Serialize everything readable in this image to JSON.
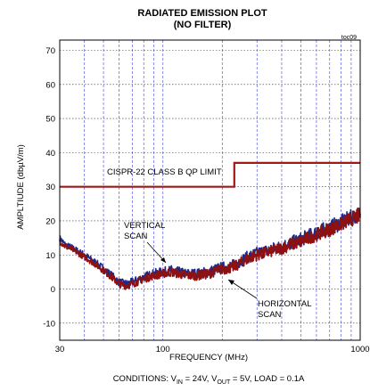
{
  "chart_data": {
    "type": "line",
    "title": "RADIATED EMISSION PLOT",
    "subtitle": "(NO FILTER)",
    "tag": "toc09",
    "xlabel": "FREQUENCY (MHz)",
    "ylabel": "AMPLTIUDE (dbµV/m)",
    "x_scale": "log",
    "xlim": [
      30,
      1000
    ],
    "ylim": [
      -15,
      73
    ],
    "grid": true,
    "x_ticks": [
      {
        "value": 30,
        "label": "30"
      },
      {
        "value": 100,
        "label": "100"
      },
      {
        "value": 1000,
        "label": "1000"
      }
    ],
    "y_ticks": [
      {
        "value": -10,
        "label": "-10"
      },
      {
        "value": 0,
        "label": "0"
      },
      {
        "value": 10,
        "label": "10"
      },
      {
        "value": 20,
        "label": "20"
      },
      {
        "value": 30,
        "label": "30"
      },
      {
        "value": 40,
        "label": "40"
      },
      {
        "value": 50,
        "label": "50"
      },
      {
        "value": 60,
        "label": "60"
      },
      {
        "value": 70,
        "label": "70"
      }
    ],
    "limit_line": {
      "label": "CISPR-22 CLASS B QP LIMIT",
      "x": [
        30,
        230,
        230,
        1000
      ],
      "y": [
        30,
        30,
        37,
        37
      ],
      "color": "#a01818"
    },
    "series": [
      {
        "name": "VERTICAL SCAN",
        "color": "#1c2a8c",
        "x": [
          30,
          32,
          35,
          40,
          45,
          50,
          55,
          60,
          65,
          70,
          80,
          90,
          100,
          110,
          120,
          130,
          150,
          170,
          190,
          210,
          230,
          260,
          300,
          350,
          400,
          500,
          600,
          700,
          800,
          900,
          1000
        ],
        "y": [
          15,
          13,
          12,
          10,
          8,
          6,
          4,
          2,
          1.5,
          2,
          3.5,
          4.5,
          5,
          5.5,
          5,
          4.5,
          4.5,
          5,
          6,
          6.5,
          7,
          9,
          10.5,
          11.5,
          12.5,
          14.5,
          16.5,
          18,
          19.5,
          21,
          22
        ]
      },
      {
        "name": "HORIZONTAL SCAN",
        "color": "#8e1010",
        "x": [
          30,
          32,
          35,
          40,
          45,
          50,
          55,
          60,
          65,
          70,
          80,
          90,
          100,
          110,
          120,
          130,
          150,
          170,
          190,
          210,
          230,
          260,
          300,
          350,
          400,
          500,
          600,
          700,
          800,
          900,
          1000
        ],
        "y": [
          14,
          12.5,
          11.5,
          9.5,
          7.5,
          5.5,
          3.5,
          1.5,
          1,
          1.5,
          3,
          4,
          4.5,
          5,
          4.5,
          4,
          4,
          4.5,
          5.5,
          6,
          6.5,
          8.5,
          10,
          11,
          12,
          14,
          16,
          17.5,
          19,
          20.5,
          21.5
        ]
      }
    ],
    "annotations": [
      {
        "lines": [
          "VERTICAL",
          "SCAN"
        ]
      },
      {
        "lines": [
          "HORIZONTAL",
          "SCAN"
        ]
      }
    ],
    "conditions": {
      "prefix": "CONDITIONS: V",
      "vin_sub": "IN",
      "vin_val": " = 24V, V",
      "vout_sub": "OUT",
      "rest": " = 5V, LOAD = 0.1A"
    }
  }
}
